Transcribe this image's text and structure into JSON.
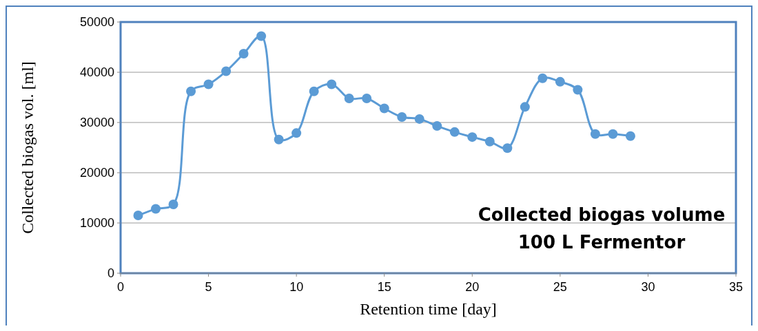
{
  "chart_data": {
    "type": "line",
    "xlabel": "Retention time [day]",
    "ylabel": "Collected biogas vol. [ml]",
    "x": [
      1,
      2,
      3,
      4,
      5,
      6,
      7,
      8,
      9,
      10,
      11,
      12,
      13,
      14,
      15,
      16,
      17,
      18,
      19,
      20,
      21,
      22,
      23,
      24,
      25,
      26,
      27,
      28,
      29
    ],
    "series": [
      {
        "color": "#5b9bd5",
        "values": [
          11500,
          12800,
          13700,
          36200,
          37600,
          40200,
          43700,
          47200,
          26600,
          27900,
          36200,
          37600,
          34800,
          34800,
          32800,
          31100,
          30700,
          29300,
          28100,
          27100,
          26200,
          24900,
          33100,
          38800,
          38100,
          36500,
          27700,
          27700,
          27300
        ]
      }
    ],
    "xlim": [
      0,
      35
    ],
    "xticks": [
      0,
      5,
      10,
      15,
      20,
      25,
      30,
      35
    ],
    "ylim": [
      0,
      50000
    ],
    "yticks": [
      0,
      10000,
      20000,
      30000,
      40000,
      50000
    ],
    "grid": "y",
    "marker": "circle",
    "line_style": "solid",
    "annotations": [
      "Collected biogas volume",
      "100 L Fermentor"
    ]
  }
}
